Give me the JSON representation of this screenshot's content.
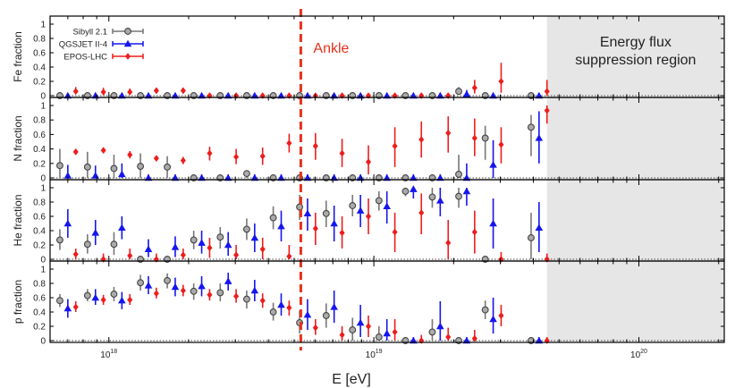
{
  "chart_data": {
    "type": "scatter",
    "x_label": "E [eV]",
    "x_scale": "log",
    "x_range": [
      6e+17,
      2.1e+20
    ],
    "x_tick_labels": [
      {
        "value": 1e+18,
        "base": "10",
        "exp": "18"
      },
      {
        "value": 1e+19,
        "base": "10",
        "exp": "19"
      },
      {
        "value": 1e+20,
        "base": "10",
        "exp": "20"
      }
    ],
    "y_range": [
      0,
      1
    ],
    "y_tick_labels": [
      "0",
      "0.2",
      "0.4",
      "0.6",
      "0.8",
      "1"
    ],
    "legend_placement": "top-left",
    "series": [
      {
        "name": "Sibyll 2.1",
        "key": "sib",
        "color": "#777777",
        "marker": "circle",
        "offset_log": -0.03
      },
      {
        "name": "QGSJET II-4",
        "key": "qgs",
        "color": "#1515ee",
        "marker": "triangle",
        "offset_log": 0.0
      },
      {
        "name": "EPOS-LHC",
        "key": "epos",
        "color": "#ee1c1c",
        "marker": "diamond",
        "offset_log": 0.03
      }
    ],
    "x_values": [
      7e+17,
      8.9e+17,
      1.12e+18,
      1.41e+18,
      1.78e+18,
      2.24e+18,
      2.82e+18,
      3.55e+18,
      4.47e+18,
      5.62e+18,
      7.08e+18,
      8.9e+18,
      1.12e+19,
      1.41e+19,
      1.78e+19,
      2.24e+19,
      2.82e+19,
      4.2e+19
    ],
    "panels": [
      {
        "key": "fe",
        "ylabel": "Fe fraction",
        "sib": [
          [
            0,
            0,
            0.02
          ],
          [
            0,
            0,
            0.02
          ],
          [
            0,
            0,
            0.02
          ],
          [
            0,
            0,
            0.02
          ],
          [
            0,
            0,
            0.02
          ],
          [
            0,
            0,
            0.02
          ],
          [
            0,
            0,
            0.02
          ],
          [
            0,
            0,
            0.02
          ],
          [
            0,
            0,
            0.02
          ],
          [
            0,
            0,
            0.02
          ],
          [
            0,
            0,
            0.02
          ],
          [
            0,
            0,
            0.02
          ],
          [
            0,
            0,
            0.02
          ],
          [
            0,
            0,
            0.02
          ],
          [
            0,
            0,
            0.02
          ],
          [
            0.06,
            0.02,
            0.12
          ],
          [
            0,
            0,
            0.02
          ],
          [
            0,
            0,
            0.02
          ]
        ],
        "qgs": [
          [
            0,
            0,
            0.02
          ],
          [
            0,
            0,
            0.02
          ],
          [
            0,
            0,
            0.02
          ],
          [
            0,
            0,
            0.02
          ],
          [
            0,
            0,
            0.02
          ],
          [
            0,
            0,
            0.02
          ],
          [
            0,
            0,
            0.02
          ],
          [
            0,
            0,
            0.02
          ],
          [
            0,
            0,
            0.02
          ],
          [
            0,
            0,
            0.02
          ],
          [
            0,
            0,
            0.02
          ],
          [
            0,
            0,
            0.02
          ],
          [
            0,
            0,
            0.02
          ],
          [
            0,
            0,
            0.02
          ],
          [
            0,
            0,
            0.02
          ],
          [
            0.02,
            0,
            0.08
          ],
          [
            0,
            0,
            0.02
          ],
          [
            0,
            0,
            0.02
          ]
        ],
        "epos": [
          [
            0.06,
            0.02,
            0.12
          ],
          [
            0.05,
            0.01,
            0.11
          ],
          [
            0.05,
            0.02,
            0.1
          ],
          [
            0.07,
            0.03,
            0.11
          ],
          [
            0.07,
            0.03,
            0.11
          ],
          [
            0,
            0,
            0.02
          ],
          [
            0,
            0,
            0.02
          ],
          [
            0,
            0,
            0.02
          ],
          [
            0,
            0,
            0.02
          ],
          [
            0,
            0,
            0.02
          ],
          [
            0,
            0,
            0.03
          ],
          [
            0,
            0,
            0.03
          ],
          [
            0,
            0,
            0.03
          ],
          [
            0,
            0,
            0.03
          ],
          [
            0,
            0,
            0.03
          ],
          [
            0.11,
            0.03,
            0.22
          ],
          [
            0.2,
            0.04,
            0.46
          ],
          [
            0.06,
            0,
            0.22
          ]
        ]
      },
      {
        "key": "n",
        "ylabel": "N fraction",
        "sib": [
          [
            0.17,
            0,
            0.4
          ],
          [
            0.15,
            0,
            0.36
          ],
          [
            0.13,
            0,
            0.32
          ],
          [
            0.16,
            0,
            0.34
          ],
          [
            0.15,
            0,
            0.3
          ],
          [
            0,
            0,
            0.05
          ],
          [
            0,
            0,
            0.05
          ],
          [
            0.06,
            0,
            0.1
          ],
          [
            0,
            0,
            0.05
          ],
          [
            0,
            0,
            0.05
          ],
          [
            0,
            0,
            0.05
          ],
          [
            0,
            0,
            0.05
          ],
          [
            0,
            0,
            0.05
          ],
          [
            0,
            0,
            0.05
          ],
          [
            0,
            0,
            0.05
          ],
          [
            0.05,
            0,
            0.32
          ],
          [
            0.55,
            0.25,
            0.72
          ],
          [
            0.7,
            0.3,
            0.87
          ]
        ],
        "qgs": [
          [
            0.03,
            0,
            0.18
          ],
          [
            0.03,
            0,
            0.17
          ],
          [
            0.05,
            0,
            0.2
          ],
          [
            0,
            0,
            0.05
          ],
          [
            0,
            0,
            0.05
          ],
          [
            0,
            0,
            0.05
          ],
          [
            0,
            0,
            0.05
          ],
          [
            0,
            0,
            0.05
          ],
          [
            0,
            0,
            0.05
          ],
          [
            0,
            0,
            0.05
          ],
          [
            0,
            0,
            0.05
          ],
          [
            0,
            0,
            0.05
          ],
          [
            0,
            0,
            0.05
          ],
          [
            0,
            0,
            0.05
          ],
          [
            0,
            0,
            0.05
          ],
          [
            0,
            0,
            0.2
          ],
          [
            0.18,
            0,
            0.52
          ],
          [
            0.55,
            0.2,
            0.92
          ]
        ],
        "epos": [
          [
            0.36,
            0.32,
            0.4
          ],
          [
            0.38,
            0.34,
            0.42
          ],
          [
            0.32,
            0.27,
            0.37
          ],
          [
            0.27,
            0.23,
            0.31
          ],
          [
            0.24,
            0.19,
            0.29
          ],
          [
            0.34,
            0.24,
            0.43
          ],
          [
            0.29,
            0.19,
            0.4
          ],
          [
            0.3,
            0.18,
            0.42
          ],
          [
            0.48,
            0.35,
            0.61
          ],
          [
            0.44,
            0.25,
            0.62
          ],
          [
            0.34,
            0.15,
            0.54
          ],
          [
            0.22,
            0.05,
            0.45
          ],
          [
            0.44,
            0.15,
            0.7
          ],
          [
            0.53,
            0.28,
            0.78
          ],
          [
            0.62,
            0.35,
            0.85
          ],
          [
            0.55,
            0.3,
            0.82
          ],
          [
            0.46,
            0.2,
            0.7
          ],
          [
            0.93,
            0.75,
            1.0
          ]
        ]
      },
      {
        "key": "he",
        "ylabel": "He fraction",
        "sib": [
          [
            0.27,
            0.13,
            0.42
          ],
          [
            0.21,
            0.08,
            0.35
          ],
          [
            0.21,
            0.06,
            0.38
          ],
          [
            0,
            0,
            0.04
          ],
          [
            0,
            0,
            0.04
          ],
          [
            0.27,
            0.14,
            0.4
          ],
          [
            0.31,
            0.15,
            0.45
          ],
          [
            0.42,
            0.27,
            0.57
          ],
          [
            0.58,
            0.42,
            0.74
          ],
          [
            0.73,
            0.55,
            0.9
          ],
          [
            0.64,
            0.45,
            0.82
          ],
          [
            0.75,
            0.6,
            0.9
          ],
          [
            0.82,
            0.68,
            0.95
          ],
          [
            0.95,
            0.88,
            1.0
          ],
          [
            0.87,
            0.72,
            1.0
          ],
          [
            0.88,
            0.72,
            1.0
          ],
          [
            0,
            0,
            0.05
          ],
          [
            0.3,
            0,
            0.65
          ]
        ],
        "qgs": [
          [
            0.5,
            0.3,
            0.7
          ],
          [
            0.37,
            0.2,
            0.55
          ],
          [
            0.44,
            0.28,
            0.6
          ],
          [
            0.14,
            0.03,
            0.28
          ],
          [
            0.17,
            0.03,
            0.32
          ],
          [
            0.23,
            0.08,
            0.4
          ],
          [
            0.2,
            0.05,
            0.38
          ],
          [
            0.3,
            0.1,
            0.5
          ],
          [
            0.46,
            0.25,
            0.68
          ],
          [
            0.64,
            0.4,
            0.85
          ],
          [
            0.5,
            0.25,
            0.75
          ],
          [
            0.68,
            0.45,
            0.9
          ],
          [
            0.74,
            0.5,
            0.95
          ],
          [
            0.98,
            0.85,
            1.0
          ],
          [
            0.82,
            0.6,
            1.0
          ],
          [
            0.95,
            0.75,
            1.0
          ],
          [
            0.5,
            0.15,
            0.85
          ],
          [
            0.44,
            0.1,
            0.8
          ]
        ],
        "epos": [
          [
            0.07,
            0,
            0.15
          ],
          [
            0,
            0,
            0.08
          ],
          [
            0.05,
            0,
            0.15
          ],
          [
            0,
            0,
            0.08
          ],
          [
            0.06,
            0,
            0.15
          ],
          [
            0.16,
            0.02,
            0.3
          ],
          [
            0.06,
            0,
            0.2
          ],
          [
            0.14,
            0,
            0.3
          ],
          [
            0.04,
            0,
            0.2
          ],
          [
            0.43,
            0.2,
            0.65
          ],
          [
            0.37,
            0.15,
            0.6
          ],
          [
            0.6,
            0.35,
            0.85
          ],
          [
            0.38,
            0.1,
            0.65
          ],
          [
            0.65,
            0.35,
            0.92
          ],
          [
            0.23,
            0,
            0.55
          ],
          [
            0.38,
            0.08,
            0.68
          ],
          [
            0,
            0,
            0.1
          ],
          [
            0,
            0,
            0.08
          ]
        ]
      },
      {
        "key": "p",
        "ylabel": "p fraction",
        "sib": [
          [
            0.56,
            0.47,
            0.65
          ],
          [
            0.63,
            0.55,
            0.72
          ],
          [
            0.65,
            0.55,
            0.75
          ],
          [
            0.81,
            0.7,
            0.92
          ],
          [
            0.84,
            0.73,
            0.94
          ],
          [
            0.69,
            0.57,
            0.8
          ],
          [
            0.67,
            0.55,
            0.8
          ],
          [
            0.58,
            0.45,
            0.7
          ],
          [
            0.4,
            0.28,
            0.53
          ],
          [
            0.25,
            0.1,
            0.42
          ],
          [
            0.35,
            0.18,
            0.52
          ],
          [
            0.15,
            0,
            0.32
          ],
          [
            0.05,
            0,
            0.2
          ],
          [
            0,
            0,
            0.05
          ],
          [
            0.12,
            0,
            0.3
          ],
          [
            0,
            0,
            0.05
          ],
          [
            0.43,
            0.3,
            0.56
          ],
          [
            0,
            0,
            0.05
          ]
        ],
        "qgs": [
          [
            0.45,
            0.32,
            0.58
          ],
          [
            0.6,
            0.5,
            0.72
          ],
          [
            0.56,
            0.44,
            0.68
          ],
          [
            0.77,
            0.65,
            0.9
          ],
          [
            0.75,
            0.62,
            0.88
          ],
          [
            0.76,
            0.62,
            0.9
          ],
          [
            0.83,
            0.7,
            0.95
          ],
          [
            0.7,
            0.55,
            0.85
          ],
          [
            0.5,
            0.35,
            0.66
          ],
          [
            0.36,
            0.15,
            0.58
          ],
          [
            0.47,
            0.25,
            0.7
          ],
          [
            0.25,
            0.05,
            0.5
          ],
          [
            0.1,
            0,
            0.3
          ],
          [
            0,
            0,
            0.05
          ],
          [
            0.2,
            0,
            0.55
          ],
          [
            0,
            0,
            0.05
          ],
          [
            0.3,
            0.1,
            0.6
          ],
          [
            0,
            0,
            0.05
          ]
        ],
        "epos": [
          [
            0.47,
            0.4,
            0.55
          ],
          [
            0.57,
            0.5,
            0.64
          ],
          [
            0.57,
            0.5,
            0.65
          ],
          [
            0.66,
            0.59,
            0.74
          ],
          [
            0.7,
            0.62,
            0.78
          ],
          [
            0.64,
            0.56,
            0.72
          ],
          [
            0.62,
            0.53,
            0.72
          ],
          [
            0.56,
            0.46,
            0.66
          ],
          [
            0.46,
            0.35,
            0.56
          ],
          [
            0.18,
            0.08,
            0.3
          ],
          [
            0.08,
            0,
            0.2
          ],
          [
            0.2,
            0.05,
            0.35
          ],
          [
            0.12,
            0,
            0.3
          ],
          [
            0,
            0,
            0.08
          ],
          [
            0.05,
            0,
            0.18
          ],
          [
            0.03,
            0,
            0.15
          ],
          [
            0.35,
            0.2,
            0.5
          ],
          [
            0,
            0,
            0.05
          ]
        ]
      }
    ],
    "annotations": {
      "ankle_label": "Ankle",
      "ankle_energy": 5.3e+18,
      "ankle_color": "#e8311c",
      "suppression_label_line1": "Energy flux",
      "suppression_label_line2": "suppression region",
      "suppression_start": 4.5e+19,
      "suppression_color": "#e6e6e6"
    }
  }
}
